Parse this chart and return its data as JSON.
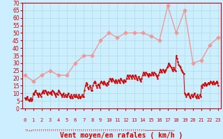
{
  "xlabel": "Vent moyen/en rafales ( km/h )",
  "bg_color": "#cceeff",
  "grid_color": "#aadddd",
  "spine_color": "#cc0000",
  "ylim": [
    0,
    70
  ],
  "yticks": [
    0,
    5,
    10,
    15,
    20,
    25,
    30,
    35,
    40,
    45,
    50,
    55,
    60,
    65,
    70
  ],
  "xticks": [
    0,
    1,
    2,
    3,
    4,
    5,
    6,
    7,
    8,
    9,
    10,
    11,
    12,
    13,
    14,
    15,
    16,
    17,
    18,
    19,
    20,
    21,
    22,
    23
  ],
  "wind_gust": [
    22,
    18,
    22,
    25,
    22,
    22,
    30,
    35,
    35,
    45,
    50,
    47,
    50,
    50,
    50,
    48,
    45,
    68,
    50,
    65,
    30,
    32,
    42,
    47
  ],
  "wind_avg_x": [
    0.0,
    0.1,
    0.2,
    0.3,
    0.4,
    0.5,
    0.6,
    0.7,
    0.8,
    0.9,
    1.0,
    1.1,
    1.2,
    1.3,
    1.4,
    1.5,
    1.6,
    1.7,
    1.8,
    1.9,
    2.0,
    2.1,
    2.2,
    2.3,
    2.4,
    2.5,
    2.6,
    2.7,
    2.8,
    2.9,
    3.0,
    3.1,
    3.2,
    3.3,
    3.4,
    3.5,
    3.6,
    3.7,
    3.8,
    3.9,
    4.0,
    4.1,
    4.2,
    4.3,
    4.4,
    4.5,
    4.6,
    4.7,
    4.8,
    4.9,
    5.0,
    5.1,
    5.2,
    5.3,
    5.4,
    5.5,
    5.6,
    5.7,
    5.8,
    5.9,
    6.0,
    6.1,
    6.2,
    6.3,
    6.4,
    6.5,
    6.6,
    6.7,
    6.8,
    6.9,
    7.0,
    7.1,
    7.2,
    7.3,
    7.4,
    7.5,
    7.6,
    7.7,
    7.8,
    7.9,
    8.0,
    8.1,
    8.2,
    8.3,
    8.4,
    8.5,
    8.6,
    8.7,
    8.8,
    8.9,
    9.0,
    9.1,
    9.2,
    9.3,
    9.4,
    9.5,
    9.6,
    9.7,
    9.8,
    9.9,
    10.0,
    10.1,
    10.2,
    10.3,
    10.4,
    10.5,
    10.6,
    10.7,
    10.8,
    10.9,
    11.0,
    11.1,
    11.2,
    11.3,
    11.4,
    11.5,
    11.6,
    11.7,
    11.8,
    11.9,
    12.0,
    12.1,
    12.2,
    12.3,
    12.4,
    12.5,
    12.6,
    12.7,
    12.8,
    12.9,
    13.0,
    13.1,
    13.2,
    13.3,
    13.4,
    13.5,
    13.6,
    13.7,
    13.8,
    13.9,
    14.0,
    14.1,
    14.2,
    14.3,
    14.4,
    14.5,
    14.6,
    14.7,
    14.8,
    14.9,
    15.0,
    15.1,
    15.2,
    15.3,
    15.4,
    15.5,
    15.6,
    15.7,
    15.8,
    15.9,
    16.0,
    16.1,
    16.2,
    16.3,
    16.4,
    16.5,
    16.6,
    16.7,
    16.8,
    16.9,
    17.0,
    17.1,
    17.2,
    17.3,
    17.4,
    17.5,
    17.6,
    17.7,
    17.8,
    17.9,
    18.0,
    18.1,
    18.2,
    18.3,
    18.4,
    18.5,
    18.6,
    18.7,
    18.8,
    18.9,
    19.0,
    19.1,
    19.2,
    19.3,
    19.4,
    19.5,
    19.6,
    19.7,
    19.8,
    19.9,
    20.0,
    20.1,
    20.2,
    20.3,
    20.4,
    20.5,
    20.6,
    20.7,
    20.8,
    20.9,
    21.0,
    21.1,
    21.2,
    21.3,
    21.4,
    21.5,
    21.6,
    21.7,
    21.8,
    21.9,
    22.0,
    22.1,
    22.2,
    22.3,
    22.4,
    22.5,
    22.6,
    22.7,
    22.8,
    22.9,
    23.0
  ],
  "wind_avg_y": [
    7,
    6,
    7,
    8,
    6,
    5,
    6,
    7,
    5,
    6,
    10,
    9,
    11,
    12,
    10,
    9,
    8,
    10,
    9,
    8,
    10,
    11,
    12,
    10,
    12,
    11,
    10,
    9,
    11,
    10,
    10,
    11,
    9,
    12,
    11,
    10,
    9,
    8,
    10,
    9,
    12,
    11,
    10,
    9,
    8,
    9,
    10,
    8,
    9,
    8,
    8,
    9,
    10,
    8,
    7,
    9,
    8,
    7,
    9,
    8,
    8,
    9,
    8,
    7,
    9,
    8,
    7,
    8,
    9,
    8,
    8,
    12,
    15,
    17,
    16,
    14,
    13,
    15,
    14,
    12,
    12,
    15,
    17,
    18,
    17,
    15,
    14,
    16,
    15,
    14,
    17,
    18,
    17,
    16,
    18,
    17,
    16,
    15,
    17,
    16,
    18,
    20,
    19,
    18,
    20,
    19,
    18,
    17,
    19,
    18,
    17,
    19,
    18,
    17,
    20,
    19,
    18,
    17,
    19,
    18,
    18,
    20,
    22,
    21,
    20,
    22,
    21,
    20,
    22,
    21,
    20,
    22,
    21,
    20,
    19,
    21,
    20,
    19,
    18,
    20,
    22,
    24,
    23,
    22,
    24,
    23,
    22,
    21,
    23,
    22,
    22,
    24,
    23,
    22,
    24,
    23,
    22,
    21,
    20,
    22,
    24,
    26,
    25,
    24,
    26,
    25,
    24,
    25,
    26,
    27,
    28,
    30,
    29,
    28,
    27,
    26,
    25,
    27,
    26,
    25,
    35,
    33,
    31,
    29,
    28,
    27,
    26,
    25,
    24,
    23,
    10,
    9,
    8,
    9,
    10,
    9,
    8,
    7,
    9,
    8,
    8,
    9,
    10,
    8,
    7,
    9,
    8,
    7,
    9,
    8,
    15,
    14,
    16,
    15,
    17,
    16,
    15,
    16,
    17,
    16,
    17,
    18,
    17,
    16,
    18,
    17,
    16,
    17,
    18,
    17,
    15
  ],
  "avg_color": "#cc0000",
  "gust_color": "#ee9999",
  "avg_linewidth": 0.7,
  "gust_linewidth": 1.0,
  "marker_size": 2.5,
  "tick_fontsize": 5,
  "xlabel_fontsize": 7,
  "arrow_symbols": "↑↑↗↗↑↑↑↑↑↑↑↑↑↑↑↑↑↑↑↑↑↑↑↑↑↑↑↑↑↑↑↑↑↑↑↑↑↑↑↑↑↑↑↑↑↑↑↑↑↑↑↑↑↑↑↑↑↑↑↑→→→→→→→→→→→→↗↗↗"
}
